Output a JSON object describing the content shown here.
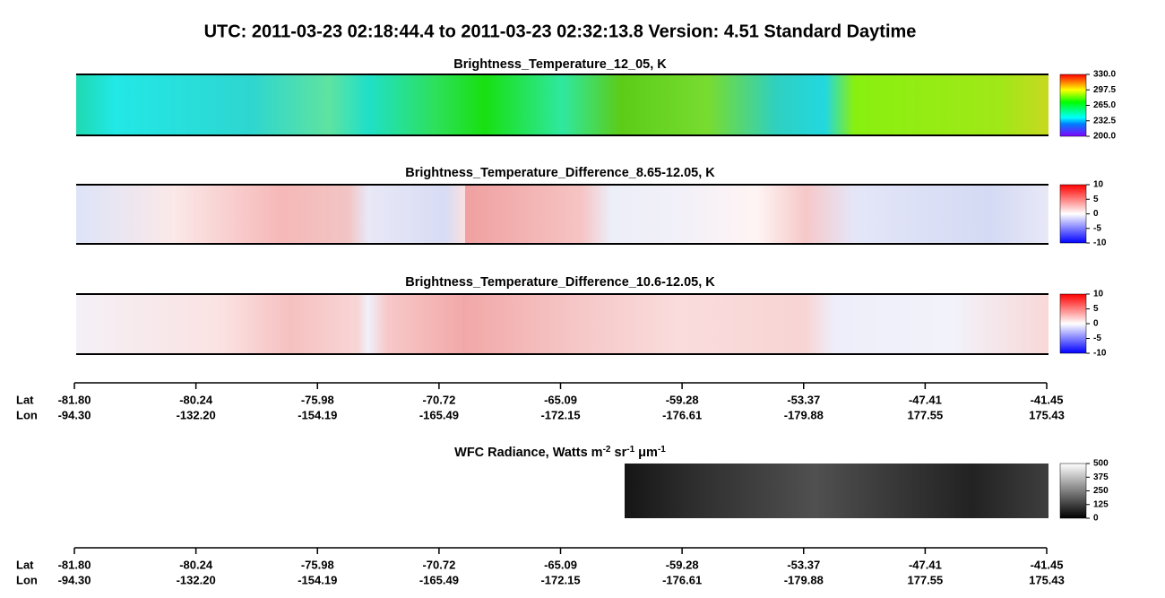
{
  "title": "UTC:  2011-03-23   02:18:44.4  to  2011-03-23   02:32:13.8    Version: 4.51  Standard Daytime",
  "panels": [
    {
      "title": "Brightness_Temperature_12_05, K",
      "colorbar": {
        "lim": [
          200,
          330
        ],
        "ticks": [
          {
            "value": 330,
            "label": "330.0"
          },
          {
            "value": 297.5,
            "label": "297.5"
          },
          {
            "value": 265,
            "label": "265.0"
          },
          {
            "value": 232.5,
            "label": "232.5"
          },
          {
            "value": 200,
            "label": "200.0"
          }
        ]
      }
    },
    {
      "title": "Brightness_Temperature_Difference_8.65-12.05, K",
      "colorbar": {
        "lim": [
          -10,
          10
        ],
        "ticks": [
          10,
          5,
          0,
          -5,
          -10
        ]
      }
    },
    {
      "title": "Brightness_Temperature_Difference_10.6-12.05, K",
      "colorbar": {
        "lim": [
          -10,
          10
        ],
        "ticks": [
          10,
          5,
          0,
          -5,
          -10
        ]
      }
    },
    {
      "title": [
        "WFC Radiance, Watts m",
        "-2",
        " sr",
        "-1",
        " μm",
        "-1"
      ],
      "colorbar": {
        "lim": [
          0,
          500
        ],
        "ticks": [
          500,
          375,
          250,
          125,
          0
        ]
      }
    }
  ],
  "axes": [
    {
      "row_labels": [
        "Lat",
        "Lon"
      ],
      "lat": [
        "-81.80",
        "-80.24",
        "-75.98",
        "-70.72",
        "-65.09",
        "-59.28",
        "-53.37",
        "-47.41",
        "-41.45"
      ],
      "lon": [
        "-94.30",
        "-132.20",
        "-154.19",
        "-165.49",
        "-172.15",
        "-176.61",
        "-179.88",
        "177.55",
        "175.43"
      ]
    },
    {
      "row_labels": [
        "Lat",
        "Lon"
      ],
      "lat": [
        "-81.80",
        "-80.24",
        "-75.98",
        "-70.72",
        "-65.09",
        "-59.28",
        "-53.37",
        "-47.41",
        "-41.45"
      ],
      "lon": [
        "-94.30",
        "-132.20",
        "-154.19",
        "-165.49",
        "-172.15",
        "-176.61",
        "-179.88",
        "177.55",
        "175.43"
      ]
    }
  ]
}
